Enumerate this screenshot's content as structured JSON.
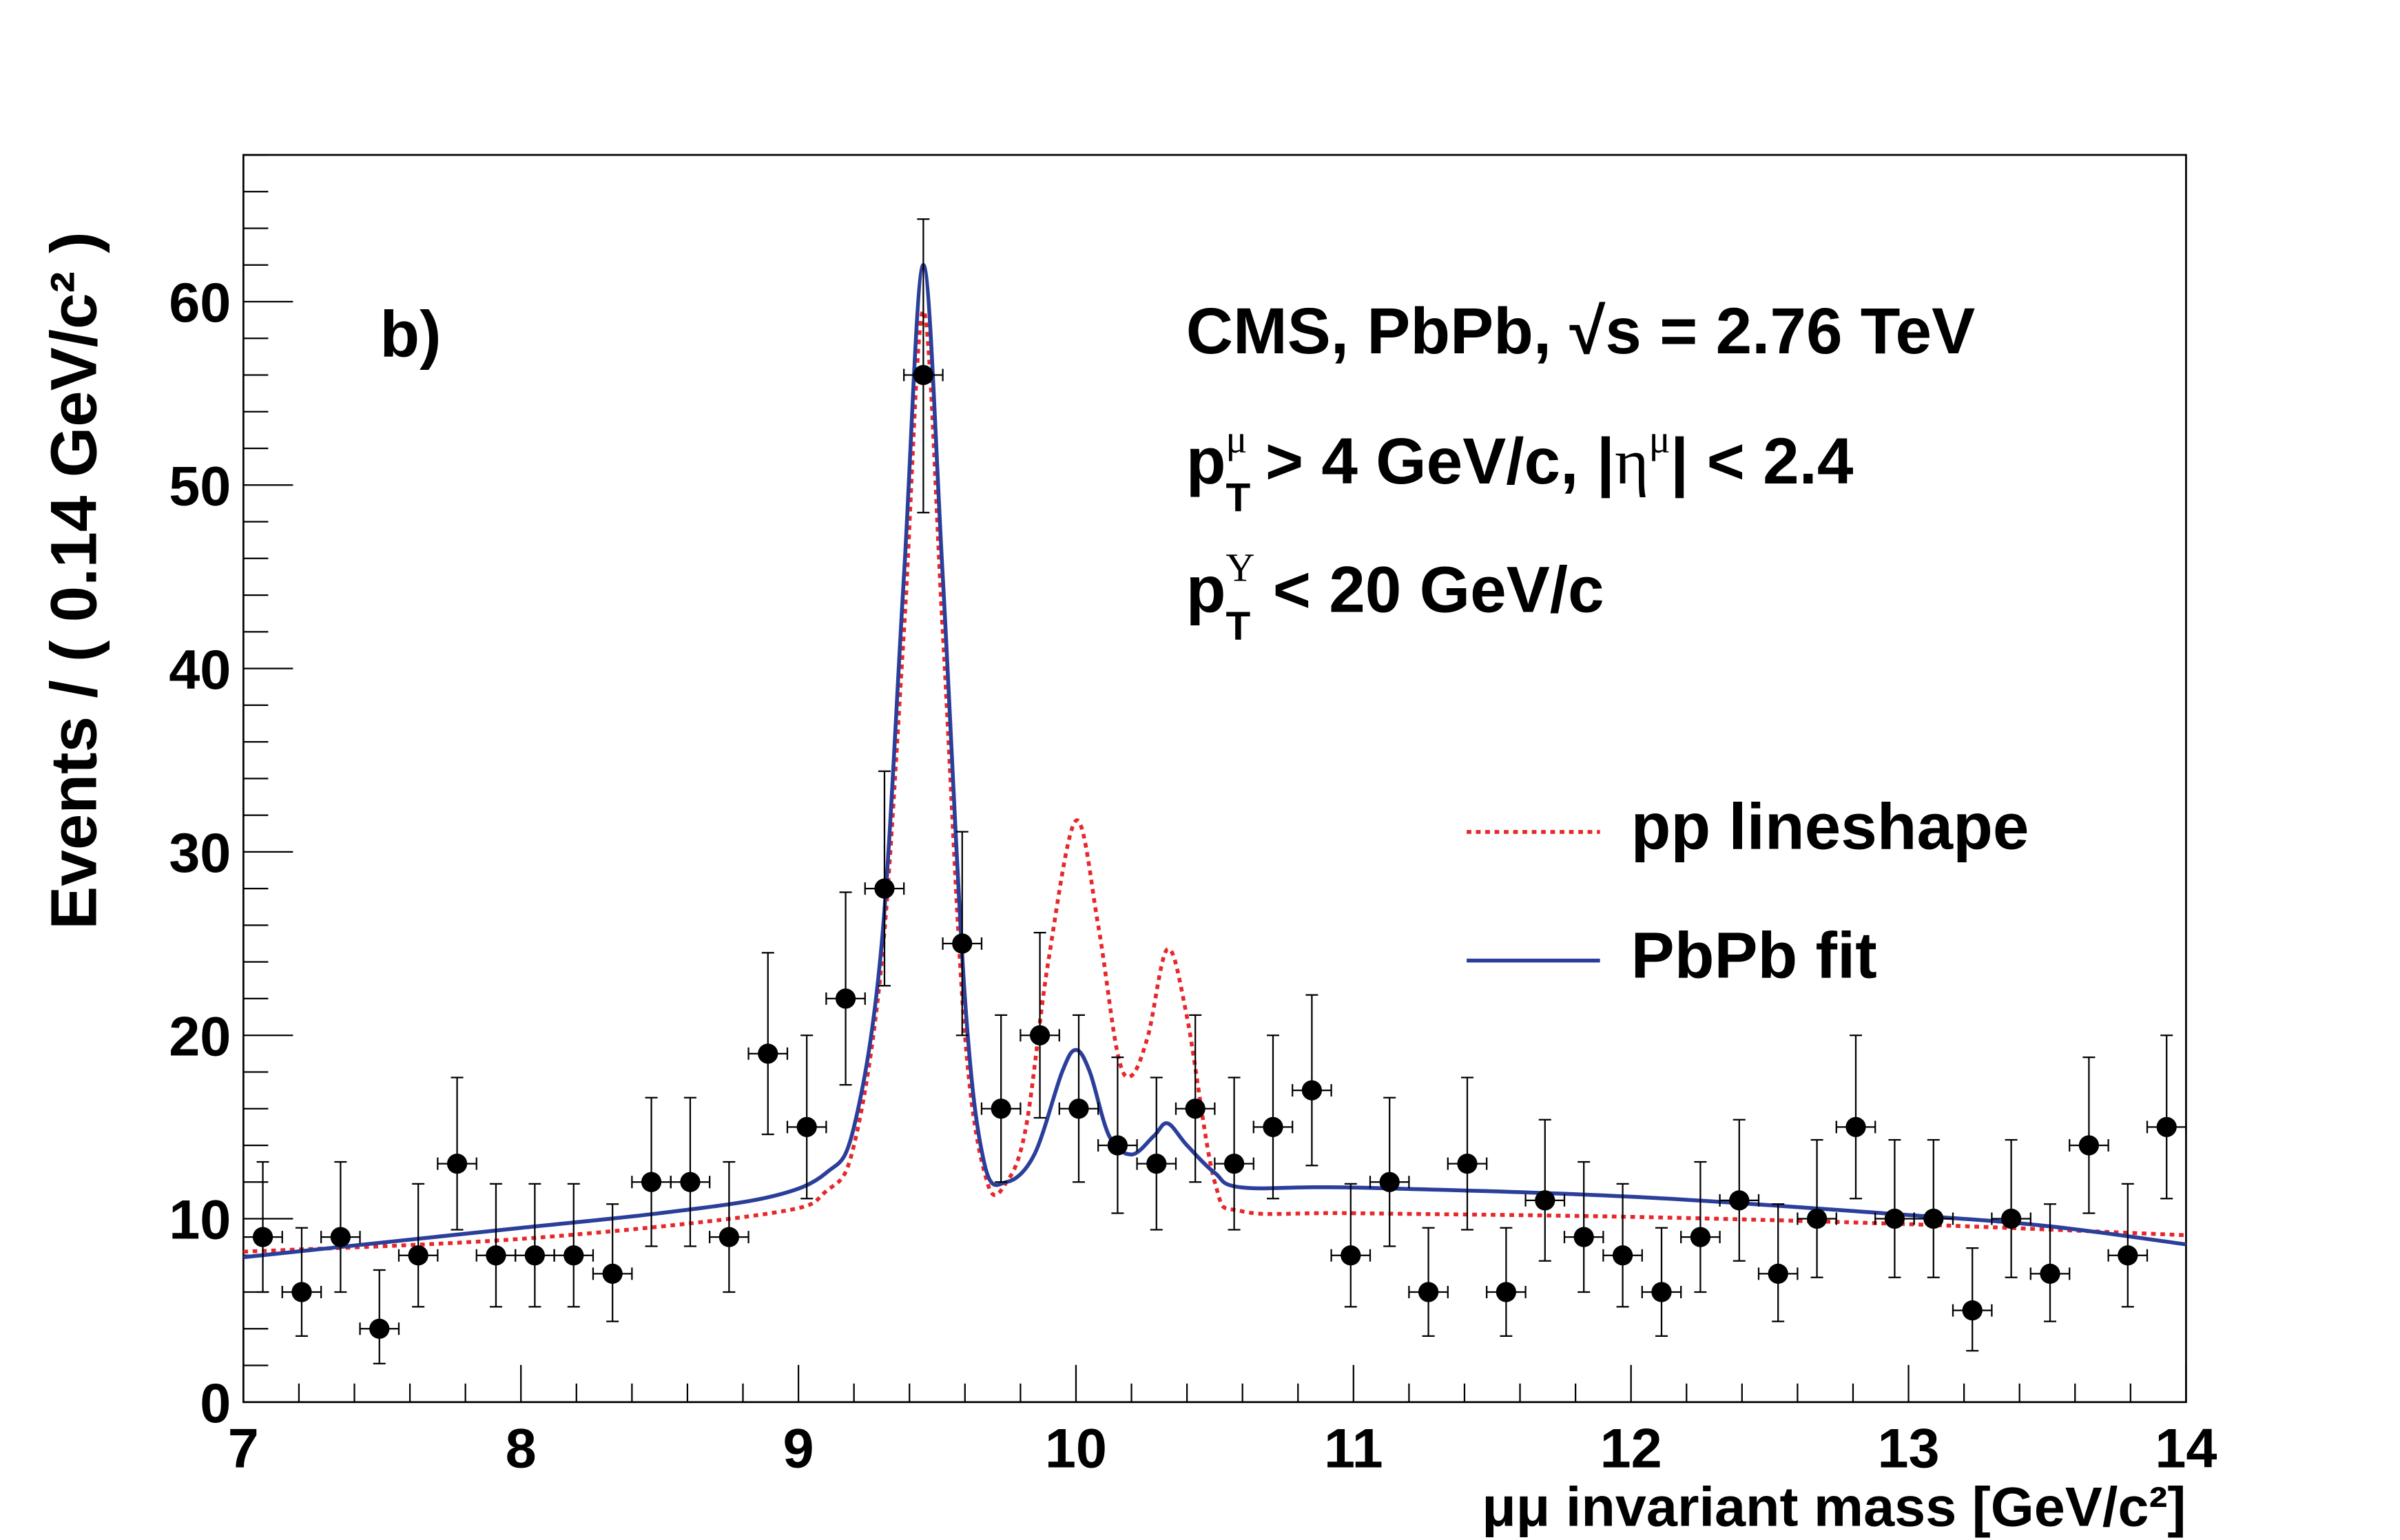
{
  "chart_data": {
    "type": "scatter",
    "panel_label": "b)",
    "xlabel": "μμ invariant mass [GeV/c²]",
    "ylabel": "Events / ( 0.14 GeV/c² )",
    "xlim": [
      7,
      14
    ],
    "ylim": [
      0,
      68
    ],
    "x_ticks": [
      "7",
      "8",
      "9",
      "10",
      "11",
      "12",
      "13",
      "14"
    ],
    "y_ticks": [
      "0",
      "10",
      "20",
      "30",
      "40",
      "50",
      "60"
    ],
    "grid": false,
    "annotations": {
      "line1": "CMS, PbPb, √s = 2.76 TeV",
      "line2": "p_T^μ > 4 GeV/c, |η^μ| < 2.4",
      "line3": "p_T^Υ < 20 GeV/c"
    },
    "legend": {
      "placement": "right",
      "entries": [
        {
          "label": "pp lineshape",
          "color": "#e8272a",
          "style": "dotted"
        },
        {
          "label": "PbPb fit",
          "color": "#2b3f9a",
          "style": "solid"
        }
      ]
    },
    "data_points": {
      "bin_width": 0.14,
      "x": [
        7.07,
        7.21,
        7.35,
        7.49,
        7.63,
        7.77,
        7.91,
        8.05,
        8.19,
        8.33,
        8.47,
        8.61,
        8.75,
        8.89,
        9.03,
        9.17,
        9.31,
        9.45,
        9.59,
        9.73,
        9.87,
        10.01,
        10.15,
        10.29,
        10.43,
        10.57,
        10.71,
        10.85,
        10.99,
        11.13,
        11.27,
        11.41,
        11.55,
        11.69,
        11.83,
        11.97,
        12.11,
        12.25,
        12.39,
        12.53,
        12.67,
        12.81,
        12.95,
        13.09,
        13.23,
        13.37,
        13.51,
        13.65,
        13.79,
        13.93
      ],
      "y": [
        9,
        6,
        9,
        4,
        8,
        13,
        8,
        8,
        8,
        7,
        12,
        12,
        9,
        19,
        15,
        22,
        28,
        56,
        25,
        16,
        20,
        16,
        14,
        13,
        16,
        13,
        15,
        17,
        8,
        12,
        6,
        13,
        6,
        11,
        9,
        8,
        6,
        9,
        11,
        7,
        10,
        15,
        10,
        10,
        5,
        10,
        7,
        14,
        8,
        15
      ],
      "err_low": [
        3.0,
        2.4,
        3.0,
        1.9,
        2.8,
        3.6,
        2.8,
        2.8,
        2.8,
        2.6,
        3.5,
        3.5,
        3.0,
        4.4,
        3.9,
        4.7,
        5.3,
        7.5,
        5.0,
        4.0,
        4.5,
        4.0,
        3.7,
        3.6,
        4.0,
        3.6,
        3.9,
        4.1,
        2.8,
        3.5,
        2.4,
        3.6,
        2.4,
        3.3,
        3.0,
        2.8,
        2.4,
        3.0,
        3.3,
        2.6,
        3.2,
        3.9,
        3.2,
        3.2,
        2.2,
        3.2,
        2.6,
        3.7,
        2.8,
        3.9
      ],
      "err_high": [
        4.1,
        3.5,
        4.1,
        3.2,
        3.9,
        4.7,
        3.9,
        3.9,
        3.9,
        3.8,
        4.6,
        4.6,
        4.1,
        5.5,
        5.0,
        5.8,
        6.4,
        8.5,
        6.1,
        5.1,
        5.6,
        5.1,
        4.8,
        4.7,
        5.1,
        4.7,
        5.0,
        5.2,
        3.9,
        4.6,
        3.5,
        4.7,
        3.5,
        4.4,
        4.1,
        3.9,
        3.5,
        4.1,
        4.4,
        3.8,
        4.3,
        5.0,
        4.3,
        4.3,
        3.4,
        4.3,
        3.8,
        4.8,
        3.9,
        5.0
      ]
    },
    "series": [
      {
        "name": "pp lineshape",
        "color": "#e8272a",
        "style": "dotted",
        "x": [
          7,
          8,
          8.9,
          9.1,
          9.2,
          9.3,
          9.38,
          9.45,
          9.52,
          9.6,
          9.68,
          9.75,
          9.82,
          9.9,
          10.0,
          10.08,
          10.15,
          10.2,
          10.26,
          10.33,
          10.4,
          10.5,
          10.6,
          11,
          12,
          13,
          14
        ],
        "y": [
          8.2,
          8.9,
          10.3,
          11.5,
          14,
          24,
          42,
          59.5,
          42,
          20,
          12,
          12,
          15,
          24,
          31.7,
          26,
          19,
          17.8,
          20,
          24.7,
          21,
          12,
          10.4,
          10.3,
          10.1,
          9.7,
          9.1
        ]
      },
      {
        "name": "PbPb fit",
        "color": "#2b3f9a",
        "style": "solid",
        "x": [
          7,
          7.5,
          8,
          8.5,
          8.9,
          9.1,
          9.2,
          9.3,
          9.38,
          9.45,
          9.52,
          9.6,
          9.67,
          9.75,
          9.85,
          9.95,
          10.0,
          10.05,
          10.12,
          10.2,
          10.28,
          10.33,
          10.4,
          10.5,
          10.6,
          11,
          12,
          13,
          13.5,
          14
        ],
        "y": [
          7.9,
          8.7,
          9.5,
          10.3,
          11.2,
          12.5,
          15,
          25,
          45,
          62,
          45,
          22,
          13,
          12,
          13.5,
          18,
          19.2,
          18,
          14.5,
          13.5,
          14.5,
          15.2,
          14,
          12.5,
          11.7,
          11.7,
          11.2,
          10.2,
          9.6,
          8.6
        ]
      }
    ]
  }
}
